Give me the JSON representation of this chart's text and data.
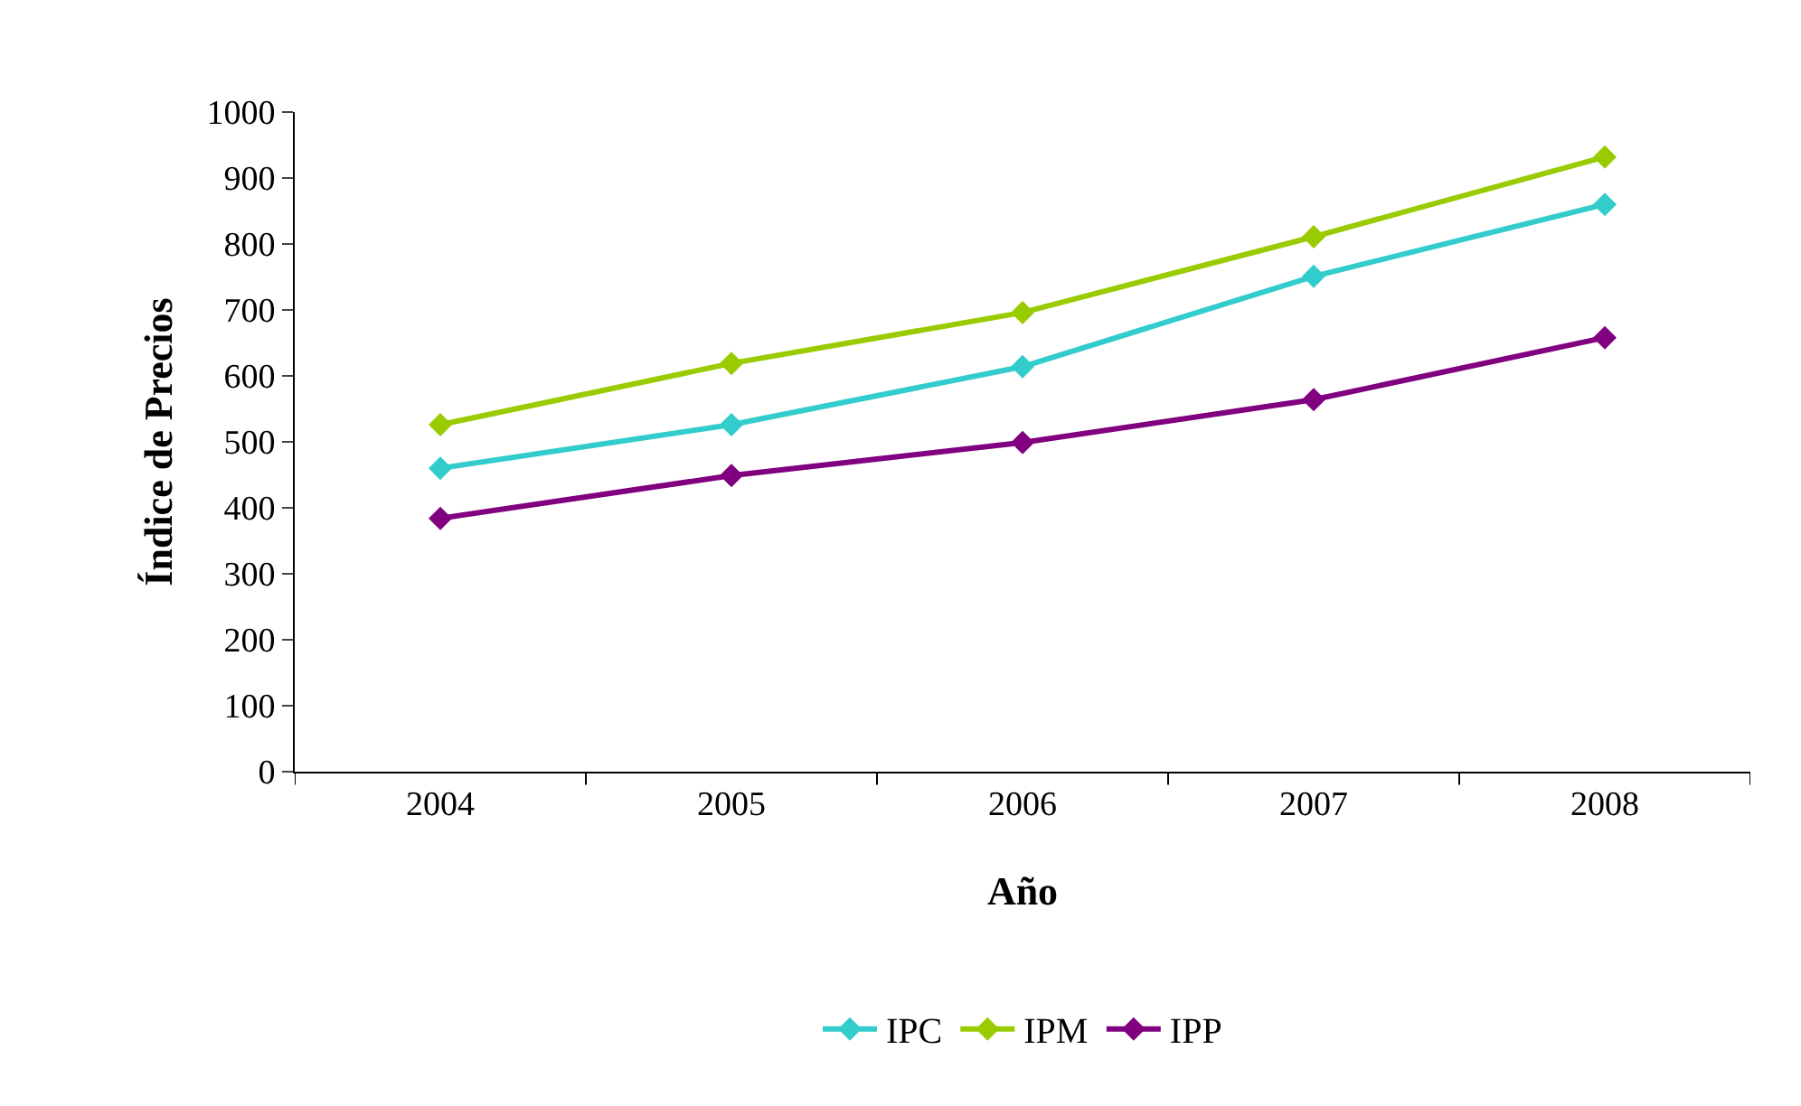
{
  "chart_data": {
    "type": "line",
    "xlabel": "Año",
    "ylabel": "Índice de Precios",
    "categories": [
      "2004",
      "2005",
      "2006",
      "2007",
      "2008"
    ],
    "series": [
      {
        "name": "IPC",
        "color": "#33cccc",
        "values": [
          460,
          526,
          614,
          751,
          860
        ]
      },
      {
        "name": "IPM",
        "color": "#99cc00",
        "values": [
          526,
          619,
          696,
          811,
          932
        ]
      },
      {
        "name": "IPP",
        "color": "#800080",
        "values": [
          384,
          449,
          499,
          564,
          658
        ]
      }
    ],
    "ylim": [
      0,
      1000
    ],
    "yticks": [
      0,
      100,
      200,
      300,
      400,
      500,
      600,
      700,
      800,
      900,
      1000
    ],
    "legend": "bottom",
    "marker": "diamond",
    "line_style": "solid"
  }
}
